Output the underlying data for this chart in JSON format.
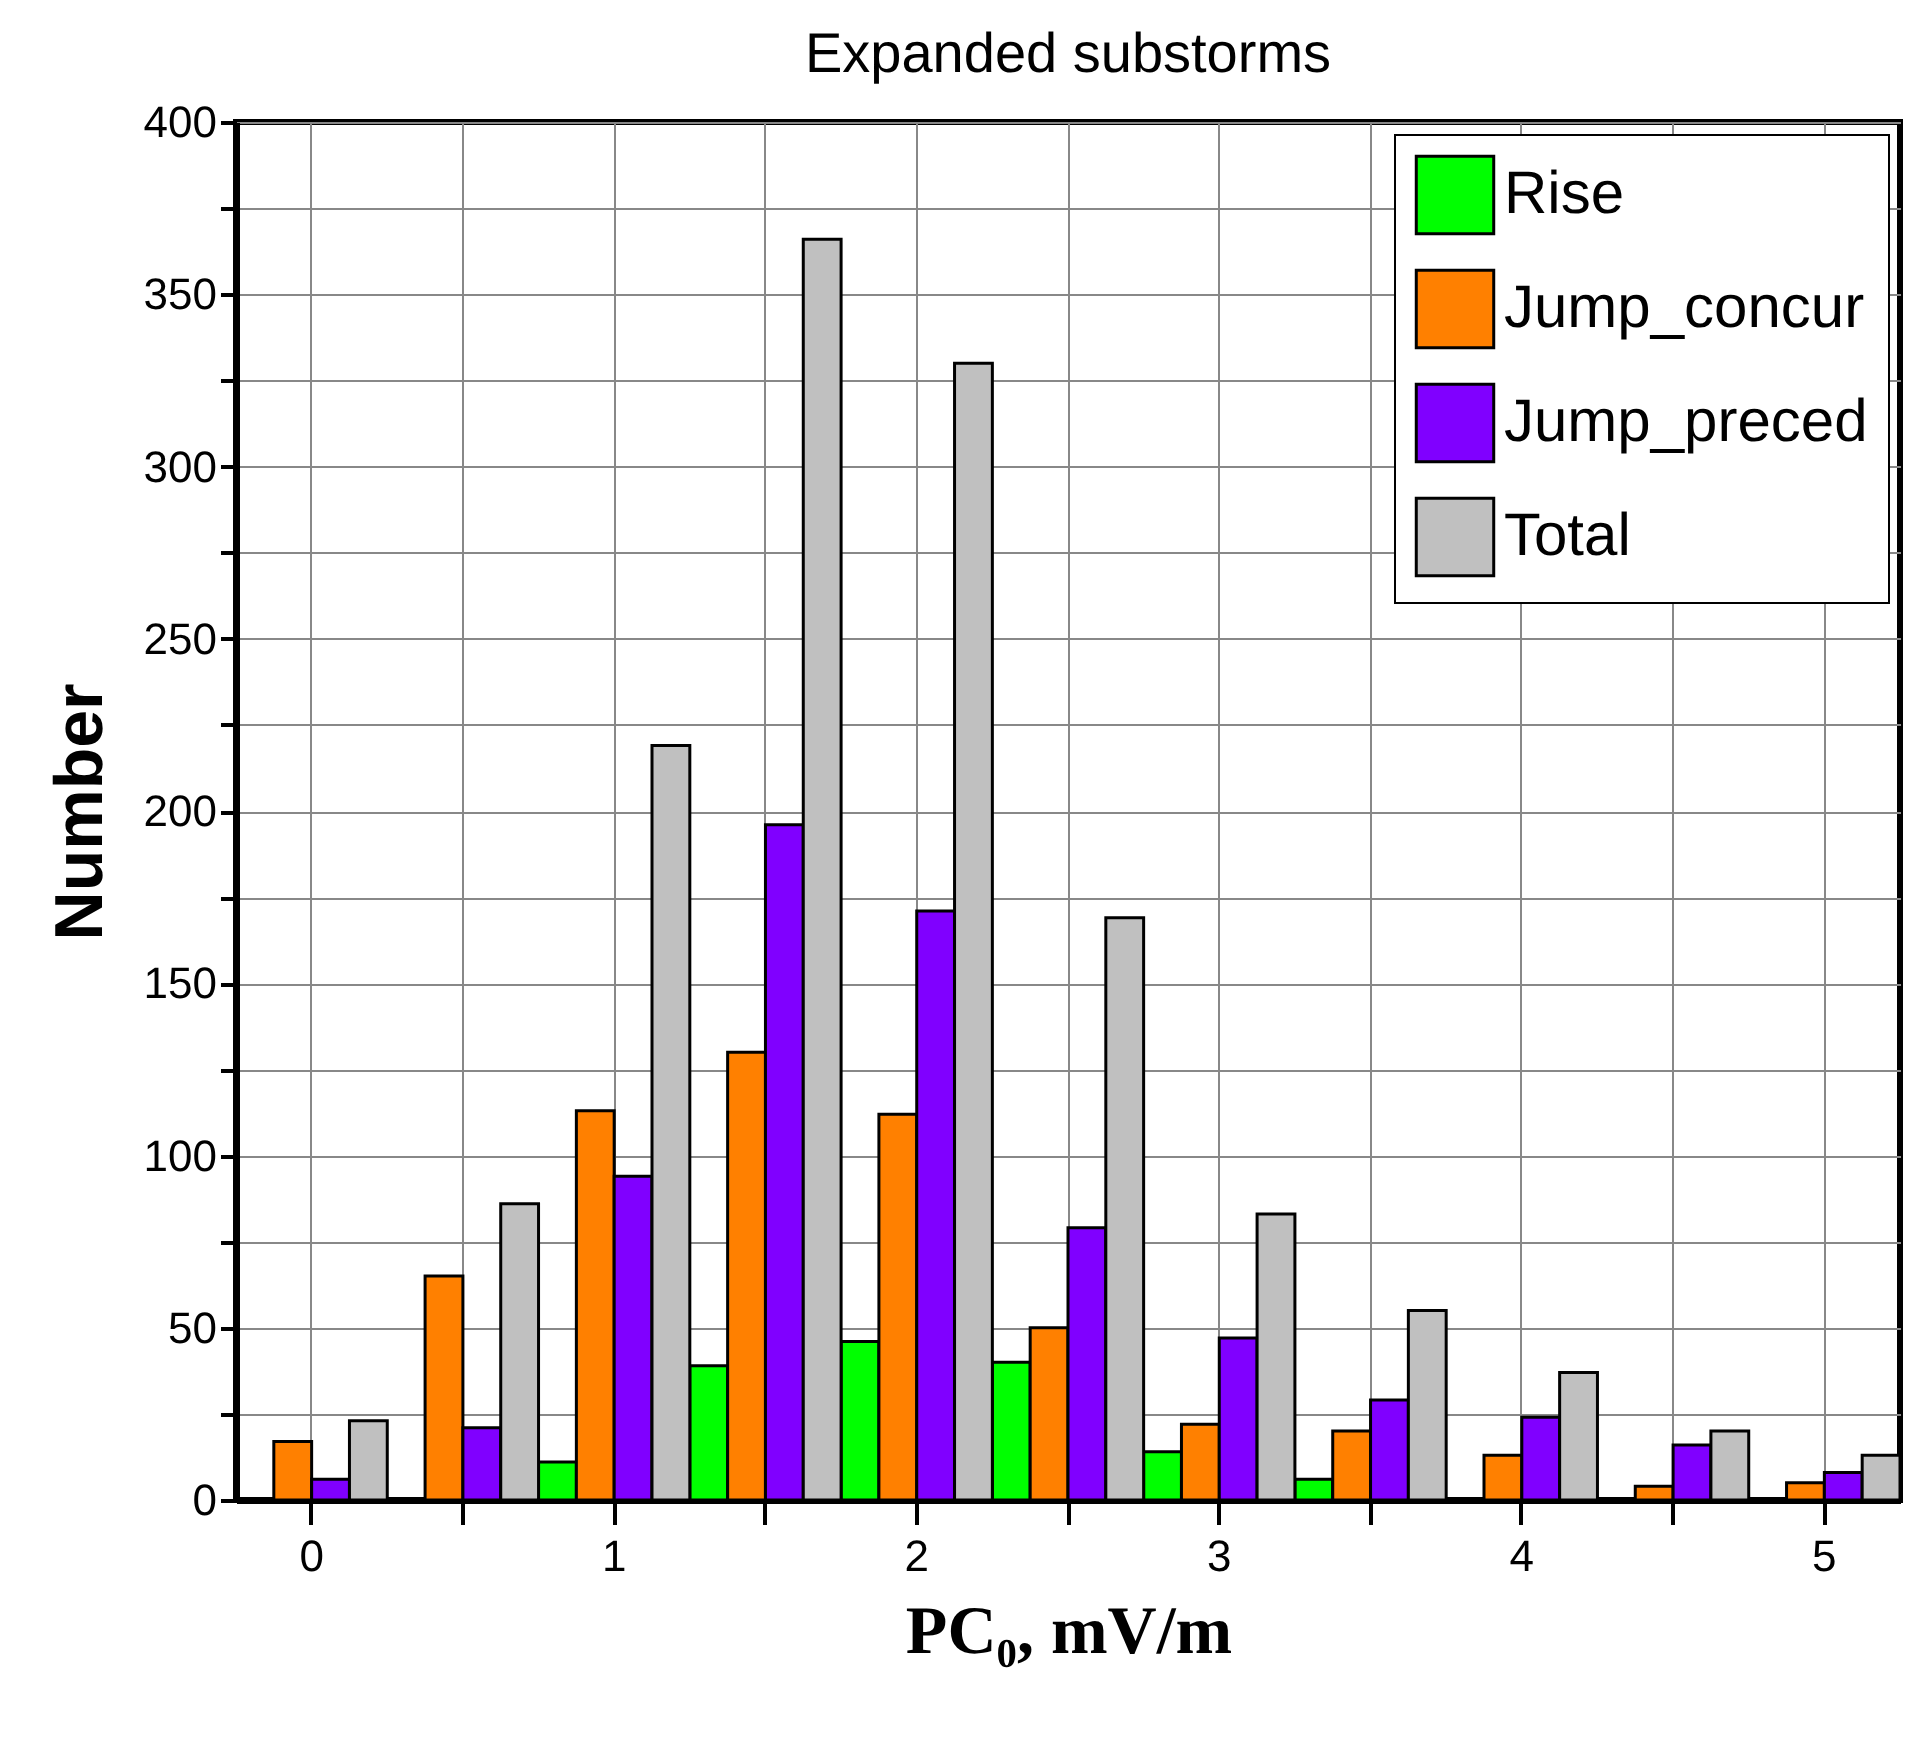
{
  "chart_data": {
    "type": "bar",
    "title": "Expanded substorms",
    "xlabel": "PC₀,  mV/m",
    "ylabel": "Number",
    "categories": [
      "0",
      null,
      "1",
      null,
      "2",
      null,
      "3",
      null,
      "4",
      null,
      "5"
    ],
    "series": [
      {
        "name": "Rise",
        "color": "#00ff00",
        "values": [
          null,
          null,
          11,
          39,
          46,
          40,
          14,
          6,
          null,
          null,
          null
        ]
      },
      {
        "name": "Jump_concur",
        "color": "#ff8000",
        "values": [
          17,
          65,
          113,
          130,
          112,
          50,
          22,
          20,
          13,
          4,
          5
        ]
      },
      {
        "name": "Jump_preced",
        "color": "#8000ff",
        "values": [
          6,
          21,
          94,
          196,
          171,
          79,
          47,
          29,
          24,
          16,
          8
        ]
      },
      {
        "name": "Total",
        "color": "#c0c0c0",
        "values": [
          23,
          86,
          219,
          366,
          330,
          169,
          83,
          55,
          37,
          20,
          13
        ]
      }
    ],
    "ylim": [
      0,
      400
    ],
    "yticks": [
      0,
      {
        "value": 25,
        "label": null
      },
      50,
      {
        "value": 75,
        "label": null
      },
      100,
      {
        "value": 125,
        "label": null
      },
      150,
      {
        "value": 175,
        "label": null
      },
      200,
      {
        "value": 225,
        "label": null
      },
      250,
      {
        "value": 275,
        "label": null
      },
      300,
      {
        "value": 325,
        "label": null
      },
      350,
      {
        "value": 375,
        "label": null
      },
      400
    ],
    "grid": true,
    "legend": "top right"
  }
}
